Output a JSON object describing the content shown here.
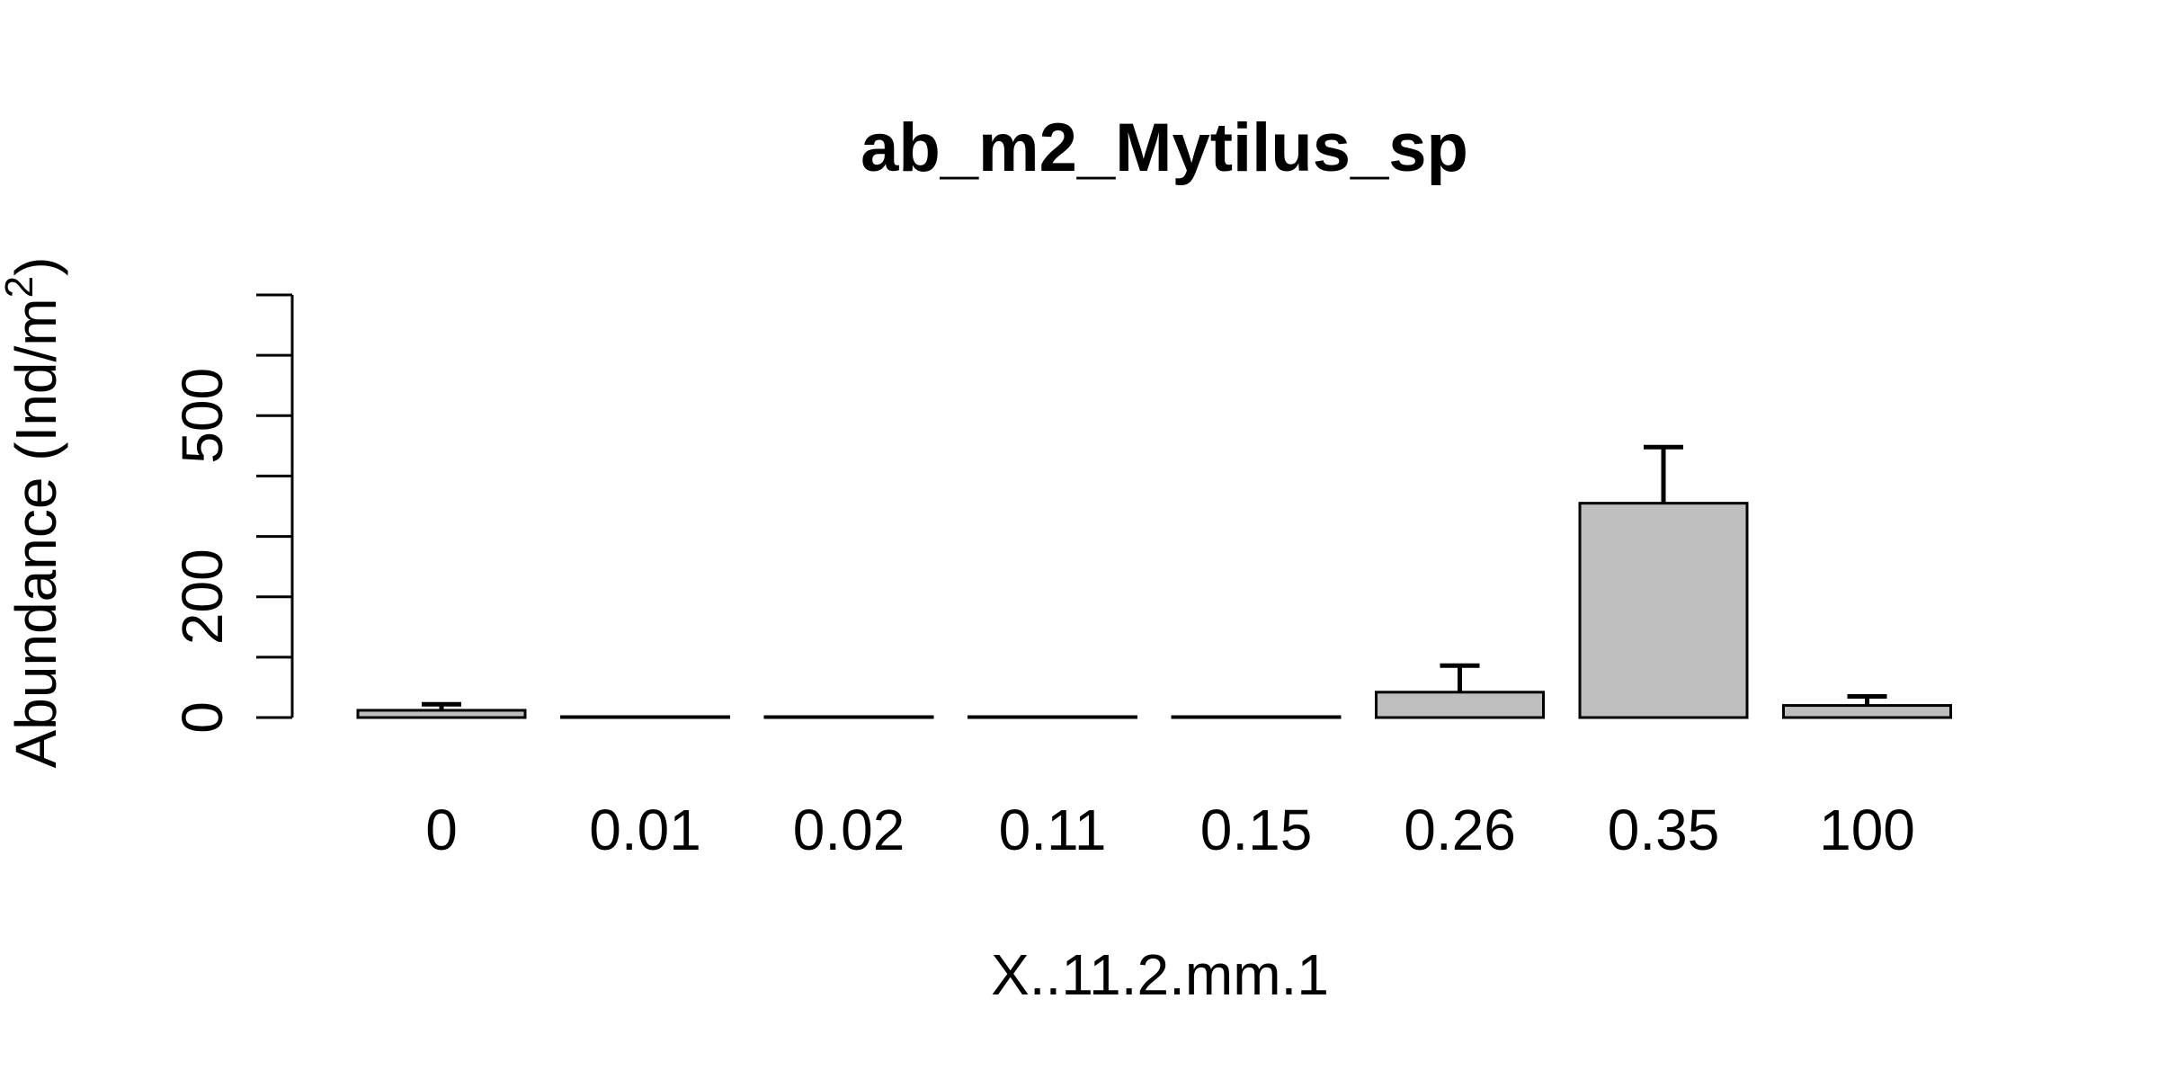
{
  "chart_data": {
    "type": "bar",
    "title": "ab_m2_Mytilus_sp",
    "xlabel": "X..11.2.mm.1",
    "ylabel_main": "Abundance (Ind/m",
    "ylabel_sup": "2",
    "ylabel_close": ")",
    "categories": [
      "0",
      "0.01",
      "0.02",
      "0.11",
      "0.15",
      "0.26",
      "0.35",
      "100"
    ],
    "values": [
      12,
      0,
      0,
      0,
      0,
      42,
      355,
      20
    ],
    "error_upper": [
      22,
      0,
      0,
      0,
      0,
      86,
      448,
      35
    ],
    "y_ticks": [
      0,
      100,
      200,
      300,
      400,
      500,
      600,
      700
    ],
    "y_tick_labels": [
      "0",
      "",
      "200",
      "",
      "",
      "500",
      "",
      ""
    ],
    "ylim": [
      0,
      700
    ],
    "grid": false,
    "bar_fill": "#bebebe",
    "bar_stroke": "#000000"
  }
}
